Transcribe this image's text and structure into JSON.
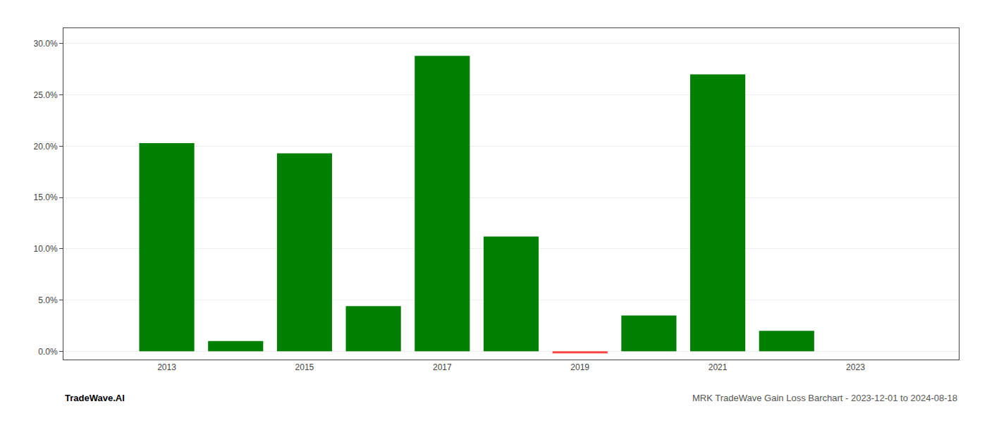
{
  "chart_data": {
    "type": "bar",
    "title": "MRK TradeWave Gain Loss Barchart - 2023-12-01 to 2024-08-18",
    "annotations": [
      "TradeWave.AI"
    ],
    "x": [
      2013,
      2014,
      2015,
      2016,
      2017,
      2018,
      2019,
      2020,
      2021,
      2022
    ],
    "values": [
      0.203,
      0.01,
      0.193,
      0.044,
      0.288,
      0.112,
      -0.002,
      0.035,
      0.27,
      0.02
    ],
    "colors": [
      "#008000",
      "#008000",
      "#008000",
      "#008000",
      "#008000",
      "#008000",
      "#ff4444",
      "#008000",
      "#008000",
      "#008000"
    ],
    "xlim": [
      2011.5,
      2024.5
    ],
    "xticks": [
      2013,
      2015,
      2017,
      2019,
      2021,
      2023
    ],
    "ylim": [
      -0.008,
      0.315
    ],
    "yticks": [
      {
        "value": 0.0,
        "label": "0.0%"
      },
      {
        "value": 0.05,
        "label": "5.0%"
      },
      {
        "value": 0.1,
        "label": "10.0%"
      },
      {
        "value": 0.15,
        "label": "15.0%"
      },
      {
        "value": 0.2,
        "label": "20.0%"
      },
      {
        "value": 0.25,
        "label": "25.0%"
      },
      {
        "value": 0.3,
        "label": "30.0%"
      }
    ],
    "grid": true
  }
}
